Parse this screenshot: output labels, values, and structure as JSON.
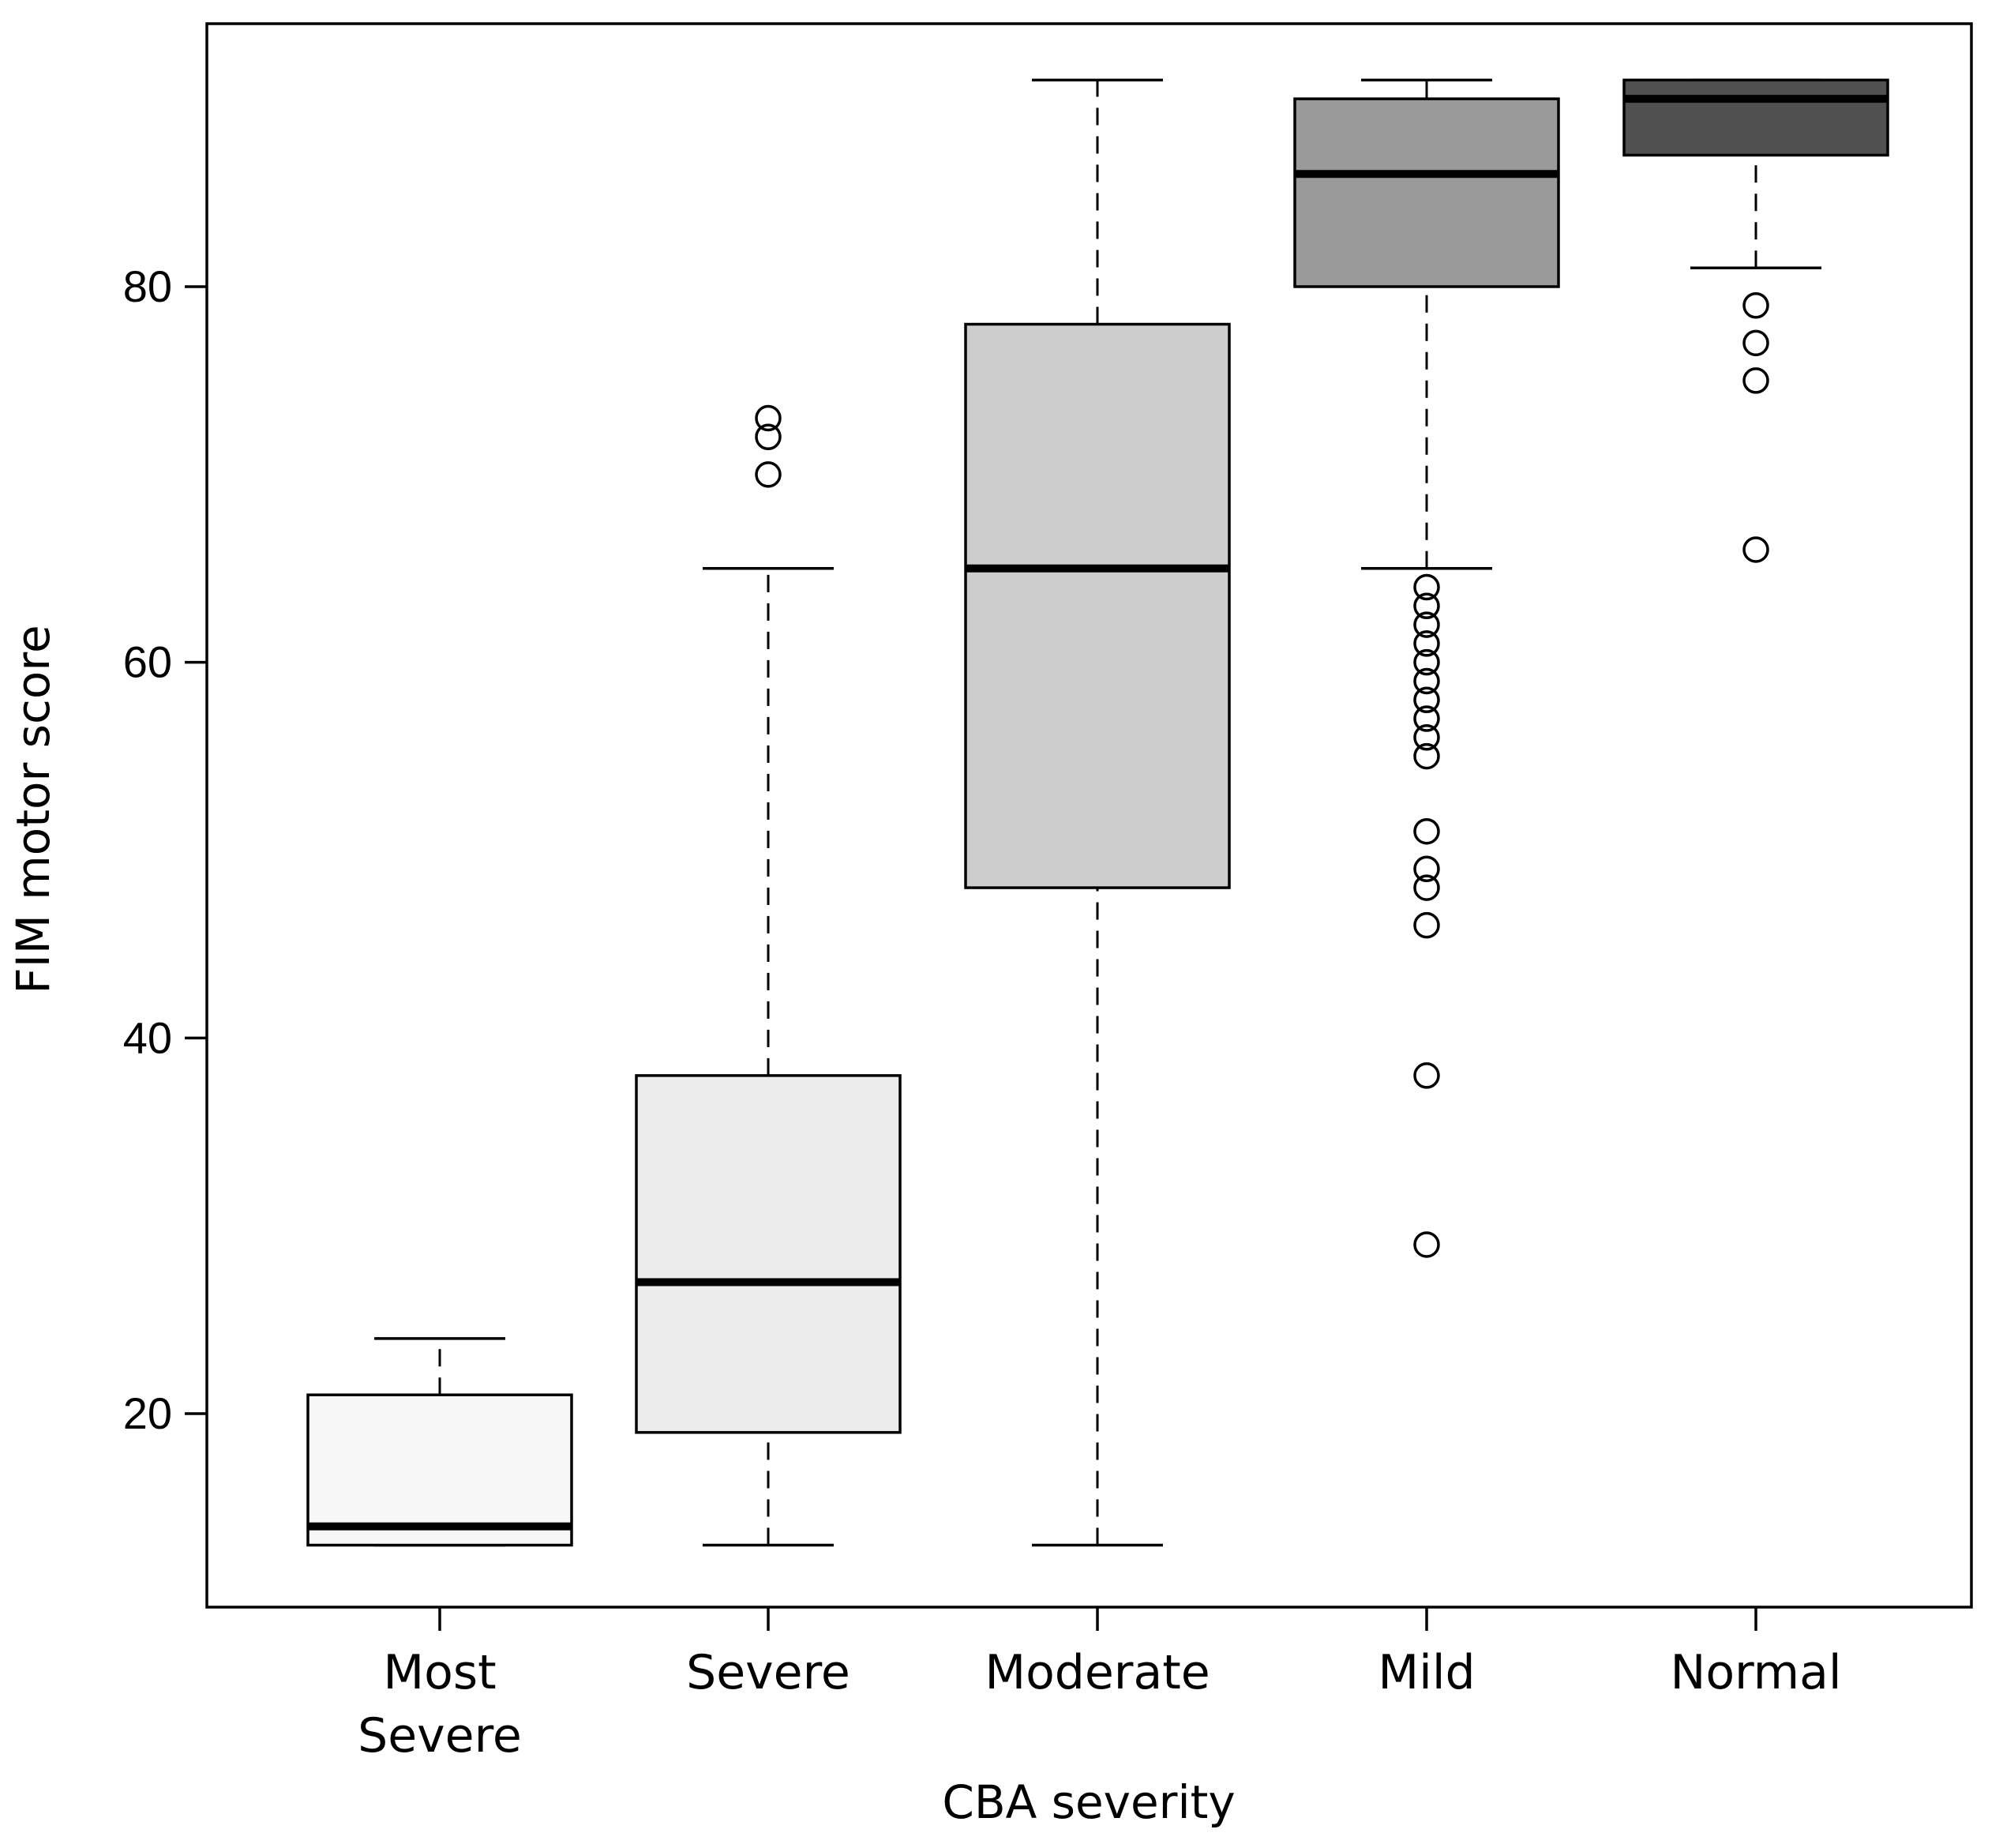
{
  "chart_data": {
    "type": "boxplot",
    "title": "",
    "xlabel": "CBA severity",
    "ylabel": "FIM motor score",
    "ylim": [
      9.7,
      94
    ],
    "yticks": [
      20,
      40,
      60,
      80
    ],
    "ytick_labels": [
      "20",
      "40",
      "60",
      "80"
    ],
    "grid": false,
    "categories": [
      {
        "label_lines": [
          "Most",
          "Severe"
        ],
        "fill": "#f7f7f7"
      },
      {
        "label_lines": [
          "Severe"
        ],
        "fill": "#ececec"
      },
      {
        "label_lines": [
          "Moderate"
        ],
        "fill": "#cdcdcd"
      },
      {
        "label_lines": [
          "Mild"
        ],
        "fill": "#9a9a9a"
      },
      {
        "label_lines": [
          "Normal"
        ],
        "fill": "#505050"
      }
    ],
    "boxes": [
      {
        "whisker_low": 13,
        "q1": 13,
        "median": 14,
        "q3": 21,
        "whisker_high": 24,
        "outliers": []
      },
      {
        "whisker_low": 13,
        "q1": 19,
        "median": 27,
        "q3": 38,
        "whisker_high": 65,
        "outliers": [
          70,
          72,
          73
        ]
      },
      {
        "whisker_low": 13,
        "q1": 48,
        "median": 65,
        "q3": 78,
        "whisker_high": 91,
        "outliers": []
      },
      {
        "whisker_low": 65,
        "q1": 80,
        "median": 86,
        "q3": 90,
        "whisker_high": 91,
        "outliers": [
          29,
          38,
          46,
          48,
          49,
          51,
          55,
          56,
          57,
          58,
          59,
          60,
          61,
          62,
          63,
          64
        ]
      },
      {
        "whisker_low": 81,
        "q1": 87,
        "median": 90,
        "q3": 91,
        "whisker_high": 91,
        "outliers": [
          66,
          75,
          77,
          79
        ]
      }
    ]
  }
}
